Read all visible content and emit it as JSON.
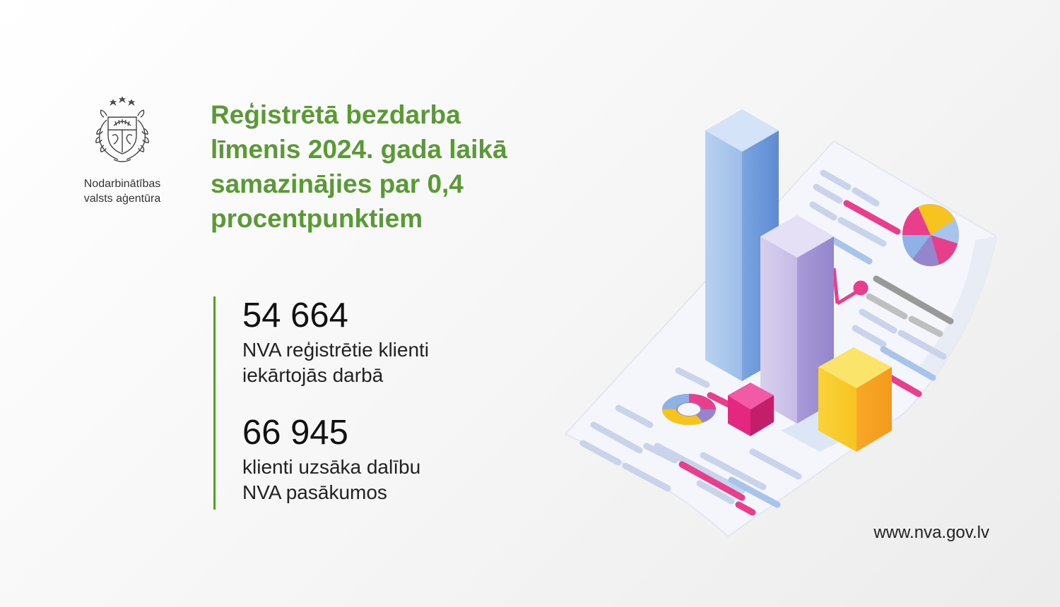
{
  "organization": {
    "name_line1": "Nodarbinātības",
    "name_line2": "valsts aģentūra"
  },
  "headline": "Reģistrētā bezdarba līmenis 2024. gada laikā samazinājies par 0,4 procentpunktiem",
  "stats": [
    {
      "value": "54 664",
      "label_line1": "NVA reģistrētie klienti",
      "label_line2": "iekārtojās darbā"
    },
    {
      "value": "66 945",
      "label_line1": "klienti uzsāka dalību",
      "label_line2": "NVA pasākumos"
    }
  ],
  "website": "www.nva.gov.lv",
  "colors": {
    "headline_green": "#5a9a35",
    "accent_blue": "#6b97d8",
    "accent_purple": "#a89ad8",
    "accent_yellow": "#f7c41f",
    "accent_pink": "#e83e8c"
  }
}
